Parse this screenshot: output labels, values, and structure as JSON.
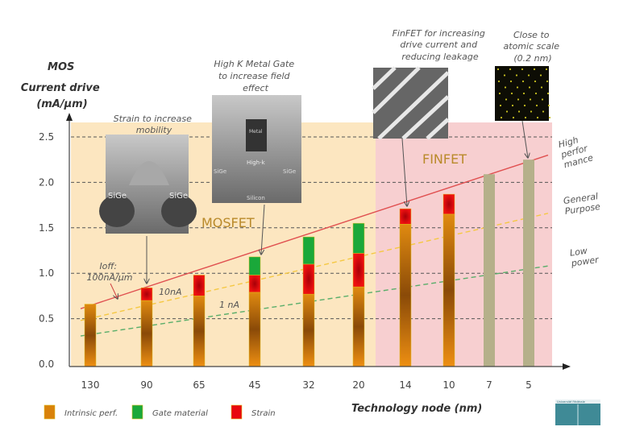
{
  "chart_data": {
    "type": "bar",
    "stacked": true,
    "ylabel": [
      "MOS",
      "Current drive",
      "(mA/µm)"
    ],
    "xlabel": "Technology node (nm)",
    "categories": [
      "130",
      "90",
      "65",
      "45",
      "32",
      "20",
      "14",
      "10",
      "7",
      "5"
    ],
    "yticks": [
      "0.0",
      "0.5",
      "1.0",
      "1.5",
      "2.0",
      "2.5"
    ],
    "ylim": [
      0,
      2.5
    ],
    "grid": "horizontal dashed",
    "series": [
      {
        "name": "Intrinsic perf.",
        "color": "#d9820a",
        "values": [
          0.66,
          0.7,
          0.75,
          0.79,
          0.77,
          0.85,
          1.54,
          1.65,
          2.09,
          2.25
        ]
      },
      {
        "name": "Strain",
        "color": "#e8090f",
        "values": [
          0,
          0.14,
          0.23,
          0.19,
          0.33,
          0.37,
          0.17,
          0.22,
          0,
          0
        ]
      },
      {
        "name": "Gate material",
        "color": "#1aa83a",
        "values": [
          0,
          0,
          0,
          0.2,
          0.3,
          0.33,
          0,
          0,
          0,
          0
        ]
      }
    ],
    "future_bar_color": "#b5b08a",
    "legend": {
      "placement": "bottom-left",
      "order": [
        "Intrinsic perf.",
        "Gate material",
        "Strain"
      ]
    },
    "regions": [
      {
        "label": "MOSFET",
        "from": "130",
        "to": "20",
        "color": "#fce6c0"
      },
      {
        "label": "FINFET",
        "from": "14",
        "to": "5",
        "color": "#f7cfd0"
      }
    ],
    "trend_lines": [
      {
        "label": "High perfor mance",
        "style": "solid",
        "color": "#e05050",
        "y_start": 0.61,
        "y_end": 2.3
      },
      {
        "label": "General Purpose",
        "style": "dashed",
        "color": "#f5c842",
        "y_start": 0.48,
        "y_end": 1.66
      },
      {
        "label": "Low power",
        "style": "dashed",
        "color": "#5aae6a",
        "y_start": 0.31,
        "y_end": 1.08
      }
    ],
    "annotations": {
      "ioff_1": "Ioff:",
      "ioff_2": "100nA/µm",
      "ten_na": "10nA",
      "one_na": "1 nA",
      "strain": [
        "Strain to increase",
        "mobility"
      ],
      "hkmg": [
        "High K Metal Gate",
        "to increase field",
        "effect"
      ],
      "finfet": [
        "FinFET for increasing",
        "drive current and",
        "reducing leakage"
      ],
      "atomic": [
        "Close to",
        "atomic scale",
        "(0.2 nm)"
      ]
    },
    "image_labels": {
      "strain": [
        "SiGe",
        "SiGe"
      ],
      "hkmg": [
        "Metal",
        "High-k",
        "SiGe",
        "SiGe",
        "Silicon"
      ]
    }
  },
  "logo": {
    "text": "Université Fédérale"
  }
}
